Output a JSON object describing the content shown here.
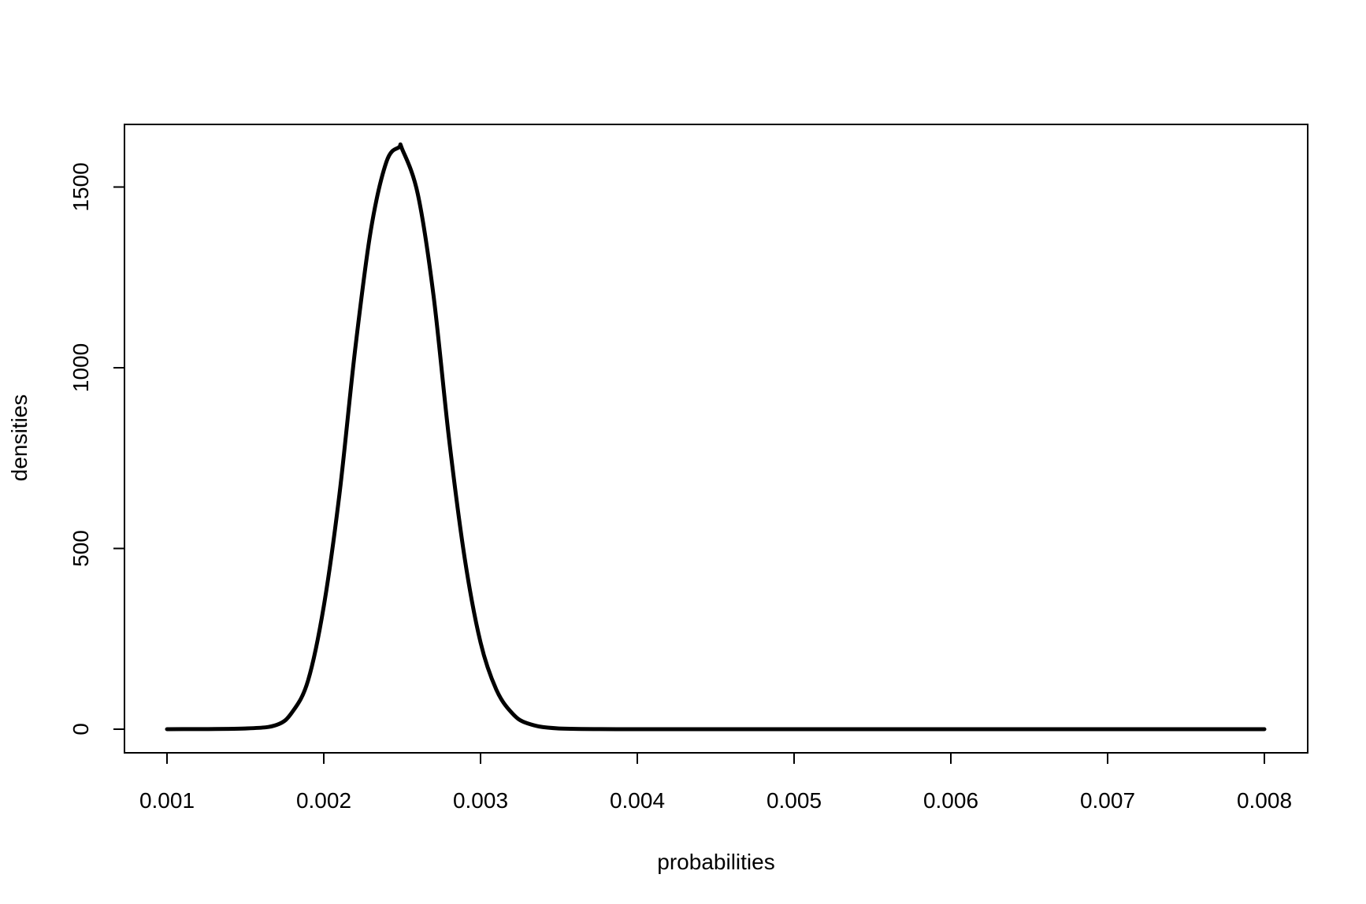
{
  "chart_data": {
    "type": "line",
    "title": "",
    "xlabel": "probabilities",
    "ylabel": "densities",
    "xlim": [
      0.001,
      0.008
    ],
    "ylim": [
      0,
      1610
    ],
    "grid": false,
    "legend": "none",
    "x_ticks": [
      0.001,
      0.002,
      0.003,
      0.004,
      0.005,
      0.006,
      0.007,
      0.008
    ],
    "x_tick_labels": [
      "0.001",
      "0.002",
      "0.003",
      "0.004",
      "0.005",
      "0.006",
      "0.007",
      "0.008"
    ],
    "y_ticks": [
      0,
      500,
      1000,
      1500
    ],
    "y_tick_labels": [
      "0",
      "500",
      "1000",
      "1500"
    ],
    "series": [
      {
        "color": "#000000",
        "x": [
          0.001,
          0.0015,
          0.0017,
          0.0018,
          0.0019,
          0.002,
          0.0021,
          0.0022,
          0.0023,
          0.0024,
          0.00248,
          0.0025,
          0.0026,
          0.0027,
          0.0028,
          0.0029,
          0.003,
          0.0031,
          0.0032,
          0.0033,
          0.0035,
          0.004,
          0.005,
          0.006,
          0.007,
          0.008
        ],
        "y": [
          0,
          2,
          12,
          48,
          135,
          340,
          650,
          1050,
          1380,
          1570,
          1610,
          1605,
          1480,
          1200,
          800,
          470,
          240,
          110,
          45,
          16,
          2,
          0,
          0,
          0,
          0,
          0
        ]
      }
    ]
  }
}
